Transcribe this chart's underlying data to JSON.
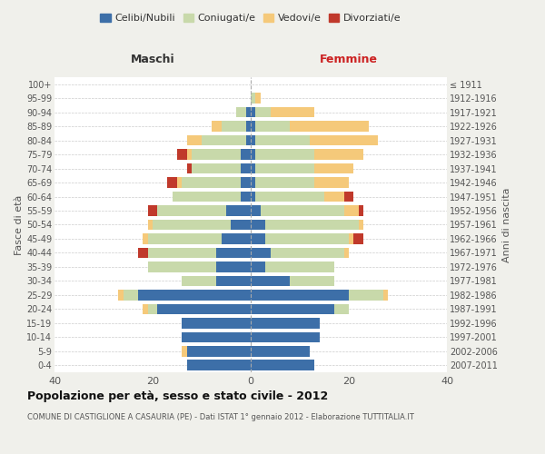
{
  "age_groups": [
    "0-4",
    "5-9",
    "10-14",
    "15-19",
    "20-24",
    "25-29",
    "30-34",
    "35-39",
    "40-44",
    "45-49",
    "50-54",
    "55-59",
    "60-64",
    "65-69",
    "70-74",
    "75-79",
    "80-84",
    "85-89",
    "90-94",
    "95-99",
    "100+"
  ],
  "birth_years": [
    "2007-2011",
    "2002-2006",
    "1997-2001",
    "1992-1996",
    "1987-1991",
    "1982-1986",
    "1977-1981",
    "1972-1976",
    "1967-1971",
    "1962-1966",
    "1957-1961",
    "1952-1956",
    "1947-1951",
    "1942-1946",
    "1937-1941",
    "1932-1936",
    "1927-1931",
    "1922-1926",
    "1917-1921",
    "1912-1916",
    "≤ 1911"
  ],
  "males": {
    "celibi": [
      13,
      13,
      14,
      14,
      19,
      23,
      7,
      7,
      7,
      6,
      4,
      5,
      2,
      2,
      2,
      2,
      1,
      1,
      1,
      0,
      0
    ],
    "coniugati": [
      0,
      0,
      0,
      0,
      2,
      3,
      7,
      14,
      14,
      15,
      16,
      14,
      14,
      12,
      10,
      10,
      9,
      5,
      2,
      0,
      0
    ],
    "vedovi": [
      0,
      1,
      0,
      0,
      1,
      1,
      0,
      0,
      0,
      1,
      1,
      0,
      0,
      1,
      0,
      1,
      3,
      2,
      0,
      0,
      0
    ],
    "divorziati": [
      0,
      0,
      0,
      0,
      0,
      0,
      0,
      0,
      2,
      0,
      0,
      2,
      0,
      2,
      1,
      2,
      0,
      0,
      0,
      0,
      0
    ]
  },
  "females": {
    "nubili": [
      13,
      12,
      14,
      14,
      17,
      20,
      8,
      3,
      4,
      3,
      3,
      2,
      1,
      1,
      1,
      1,
      1,
      1,
      1,
      0,
      0
    ],
    "coniugate": [
      0,
      0,
      0,
      0,
      3,
      7,
      9,
      14,
      15,
      17,
      19,
      17,
      14,
      12,
      12,
      12,
      11,
      7,
      3,
      1,
      0
    ],
    "vedove": [
      0,
      0,
      0,
      0,
      0,
      1,
      0,
      0,
      1,
      1,
      1,
      3,
      4,
      7,
      8,
      10,
      14,
      16,
      9,
      1,
      0
    ],
    "divorziate": [
      0,
      0,
      0,
      0,
      0,
      0,
      0,
      0,
      0,
      2,
      0,
      1,
      2,
      0,
      0,
      0,
      0,
      0,
      0,
      0,
      0
    ]
  },
  "colors": {
    "celibi": "#3d6fa8",
    "coniugati": "#c8d9aa",
    "vedovi": "#f5c97a",
    "divorziati": "#c0392b"
  },
  "title": "Popolazione per età, sesso e stato civile - 2012",
  "subtitle": "COMUNE DI CASTIGLIONE A CASAURIA (PE) - Dati ISTAT 1° gennaio 2012 - Elaborazione TUTTITALIA.IT",
  "xlabel_left": "Maschi",
  "xlabel_right": "Femmine",
  "ylabel_left": "Fasce di età",
  "ylabel_right": "Anni di nascita",
  "legend_labels": [
    "Celibi/Nubili",
    "Coniugati/e",
    "Vedovi/e",
    "Divorziati/e"
  ],
  "xlim": 40,
  "background_color": "#f0f0eb",
  "plot_background": "#ffffff"
}
